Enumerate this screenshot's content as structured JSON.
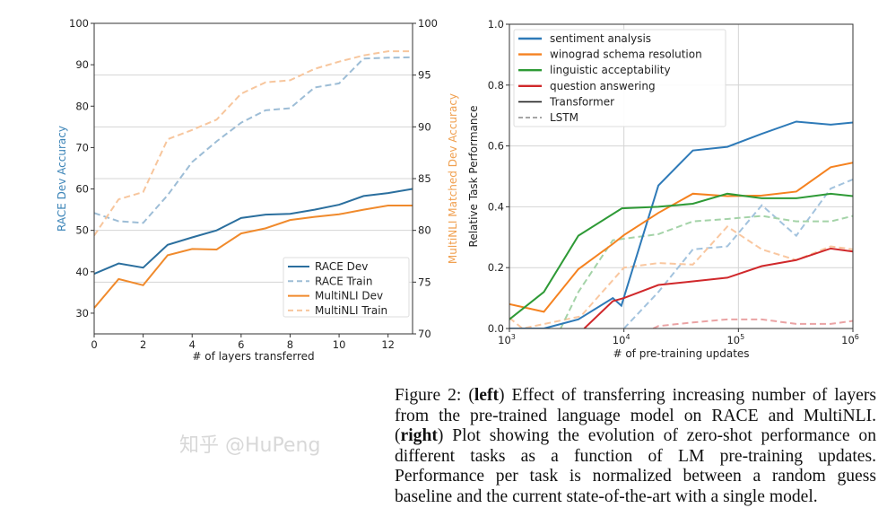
{
  "chart_data": [
    {
      "type": "line",
      "xlabel": "# of layers transferred",
      "ylabel": "RACE Dev Accuracy",
      "ylabel_right": "MultiNLI Matched Dev Accuracy",
      "xlim": [
        0,
        13
      ],
      "ylim": [
        25,
        100
      ],
      "ylim_right": [
        70,
        100
      ],
      "xticks": [
        0,
        2,
        4,
        6,
        8,
        10,
        12
      ],
      "yticks": [
        30,
        40,
        50,
        60,
        70,
        80,
        90,
        100
      ],
      "yticks_right": [
        70,
        75,
        80,
        85,
        90,
        95,
        100
      ],
      "grid": "horizontal on right-axis ticks",
      "legend_position": "lower-right",
      "x": [
        0,
        1,
        2,
        3,
        4,
        5,
        6,
        7,
        8,
        9,
        10,
        11,
        12,
        13
      ],
      "series": [
        {
          "name": "RACE Dev",
          "axis": "left",
          "style": "solid",
          "color": "#2b6f9e",
          "values": [
            39.5,
            42,
            41,
            46.5,
            48.3,
            50,
            53,
            53.8,
            54,
            55,
            56.2,
            58.3,
            59,
            60
          ]
        },
        {
          "name": "RACE Train",
          "axis": "left",
          "style": "dashed",
          "color": "#9dbdd6",
          "values": [
            54.2,
            52.2,
            51.8,
            58.5,
            66.5,
            71.5,
            76,
            79,
            79.5,
            84.5,
            85.5,
            91.5,
            91.7,
            91.8
          ]
        },
        {
          "name": "MultiNLI Dev",
          "axis": "right",
          "style": "solid",
          "color": "#f08a2c",
          "values": [
            72.5,
            75.3,
            74.7,
            77.6,
            78.2,
            78.15,
            79.7,
            80.2,
            81.0,
            81.3,
            81.55,
            82.0,
            82.4,
            82.4
          ]
        },
        {
          "name": "MultiNLI Train",
          "axis": "right",
          "style": "dashed",
          "color": "#f7c69d",
          "values": [
            79.5,
            83.0,
            83.7,
            88.8,
            89.7,
            90.7,
            93.2,
            94.3,
            94.5,
            95.6,
            96.3,
            96.9,
            97.3,
            97.3
          ]
        }
      ]
    },
    {
      "type": "line",
      "xlabel": "# of pre-training updates",
      "ylabel": "Relative Task Performance",
      "xscale": "log",
      "xlim": [
        1000,
        1000000
      ],
      "ylim": [
        0,
        1.0
      ],
      "xticks": [
        "10^3",
        "10^4",
        "10^5",
        "10^6"
      ],
      "yticks": [
        "0.0",
        "0.2",
        "0.4",
        "0.6",
        "0.8",
        "1.0"
      ],
      "grid": true,
      "legend_position": "upper-left",
      "legend": [
        "sentiment analysis",
        "winograd schema resolution",
        "linguistic acceptability",
        "question answering",
        "Transformer",
        "LSTM"
      ],
      "series": [
        {
          "name": "sentiment analysis",
          "model": "Transformer",
          "color": "#2e7ab8",
          "x": [
            1000,
            2000,
            4000,
            8000,
            9500,
            20000,
            40000,
            80000,
            160000,
            320000,
            640000,
            1000000
          ],
          "values": [
            0,
            0,
            0.03,
            0.1,
            0.075,
            0.47,
            0.585,
            0.597,
            0.64,
            0.68,
            0.67,
            0.677
          ]
        },
        {
          "name": "winograd schema resolution",
          "model": "Transformer",
          "color": "#f58220",
          "x": [
            1000,
            2000,
            4000,
            8000,
            10000,
            20000,
            40000,
            80000,
            160000,
            320000,
            640000,
            1000000
          ],
          "values": [
            0.08,
            0.055,
            0.195,
            0.278,
            0.307,
            0.38,
            0.443,
            0.435,
            0.437,
            0.45,
            0.53,
            0.545
          ]
        },
        {
          "name": "linguistic acceptability",
          "model": "Transformer",
          "color": "#2e9a36",
          "x": [
            1000,
            2000,
            4000,
            9600,
            20000,
            40000,
            80000,
            160000,
            320000,
            640000,
            1000000
          ],
          "values": [
            0.03,
            0.12,
            0.305,
            0.395,
            0.4,
            0.41,
            0.443,
            0.428,
            0.428,
            0.443,
            0.435
          ]
        },
        {
          "name": "question answering",
          "model": "Transformer",
          "color": "#d0282b",
          "x": [
            4500,
            8000,
            10000,
            20000,
            40000,
            80000,
            160000,
            320000,
            640000,
            1000000
          ],
          "values": [
            0,
            0.09,
            0.1,
            0.143,
            0.155,
            0.167,
            0.205,
            0.225,
            0.263,
            0.253
          ]
        },
        {
          "name": "sentiment analysis",
          "model": "LSTM",
          "color": "#a3c3de",
          "x": [
            10000,
            20000,
            40000,
            80000,
            160000,
            320000,
            640000,
            1000000
          ],
          "values": [
            0,
            0.12,
            0.26,
            0.27,
            0.405,
            0.305,
            0.46,
            0.49
          ]
        },
        {
          "name": "winograd schema resolution",
          "model": "LSTM",
          "color": "#f9c7a0",
          "x": [
            1000,
            1300,
            4200,
            10000,
            20000,
            40000,
            80000,
            160000,
            320000,
            640000,
            1000000
          ],
          "values": [
            0.035,
            0,
            0.04,
            0.2,
            0.215,
            0.21,
            0.335,
            0.26,
            0.225,
            0.27,
            0.26
          ]
        },
        {
          "name": "linguistic acceptability",
          "model": "LSTM",
          "color": "#a4d3a8",
          "x": [
            2800,
            4000,
            8000,
            10000,
            20000,
            40000,
            80000,
            160000,
            320000,
            640000,
            1000000
          ],
          "values": [
            0,
            0.12,
            0.29,
            0.295,
            0.31,
            0.352,
            0.36,
            0.37,
            0.352,
            0.352,
            0.37
          ]
        },
        {
          "name": "question answering",
          "model": "LSTM",
          "color": "#eaa3a4",
          "x": [
            18000,
            20000,
            40000,
            80000,
            160000,
            320000,
            640000,
            1000000
          ],
          "values": [
            0,
            0.008,
            0.02,
            0.03,
            0.03,
            0.015,
            0.015,
            0.025
          ]
        }
      ]
    }
  ],
  "caption": {
    "prefix": "Figure 2: (",
    "left": "left",
    "mid": ") Effect of transferring increasing number of layers from the pre-trained language model on RACE and MultiNLI. (",
    "right": "right",
    "suffix": ") Plot showing the evolution of zero-shot performance on different tasks as a function of LM pre-training updates. Performance per task is normalized between a random guess baseline and the current state-of-the-art with a single model."
  },
  "watermark": "知乎 @HuPeng"
}
